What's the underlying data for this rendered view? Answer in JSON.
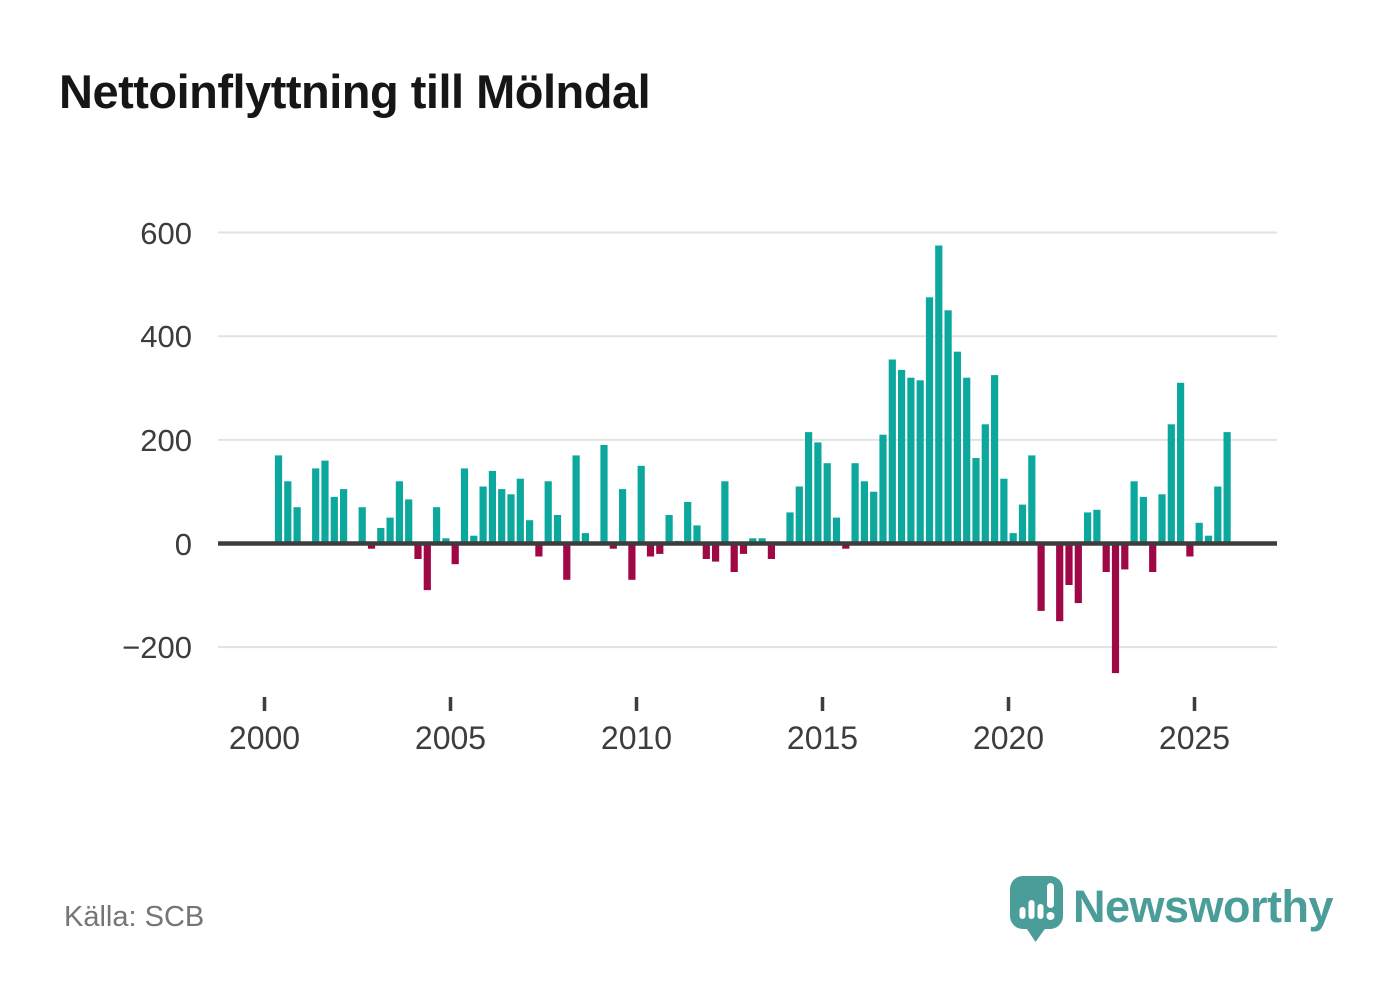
{
  "title": "Nettoinflyttning till Mölndal",
  "source": "Källa: SCB",
  "logo": {
    "text": "Newsworthy"
  },
  "colors": {
    "positive": "#0ca89e",
    "negative": "#a00747",
    "grid": "#e2e2e2",
    "axis": "#3d3d3d",
    "tick_text": "#3d3d3d",
    "source_text": "#757575",
    "logo_teal": "#4a9d98",
    "title_text": "#161616"
  },
  "chart_data": {
    "type": "bar",
    "title": "Nettoinflyttning till Mölndal",
    "x_unit": "quarter",
    "start": {
      "year": 2000,
      "quarter": 1
    },
    "values": [
      0,
      170,
      120,
      70,
      0,
      145,
      160,
      90,
      105,
      0,
      70,
      -10,
      30,
      50,
      120,
      85,
      -30,
      -90,
      70,
      10,
      -40,
      145,
      15,
      110,
      140,
      105,
      95,
      125,
      45,
      -25,
      120,
      55,
      -70,
      170,
      20,
      0,
      190,
      -10,
      105,
      -70,
      150,
      -25,
      -20,
      55,
      5,
      80,
      35,
      -30,
      -35,
      120,
      -55,
      -20,
      10,
      10,
      -30,
      0,
      60,
      110,
      215,
      195,
      155,
      50,
      -10,
      155,
      120,
      100,
      210,
      355,
      335,
      320,
      315,
      475,
      575,
      450,
      370,
      320,
      165,
      230,
      325,
      125,
      20,
      75,
      170,
      -130,
      0,
      -150,
      -80,
      -115,
      60,
      65,
      -55,
      -250,
      -50,
      120,
      90,
      -55,
      95,
      230,
      310,
      -25,
      40,
      15,
      110,
      215
    ],
    "y_ticks": [
      600,
      400,
      200,
      0,
      -200
    ],
    "x_ticks": [
      2000,
      2005,
      2010,
      2015,
      2020,
      2025
    ],
    "ylim": [
      -260,
      620
    ],
    "grid": true,
    "legend": "none",
    "ylabel": "",
    "xlabel": ""
  }
}
